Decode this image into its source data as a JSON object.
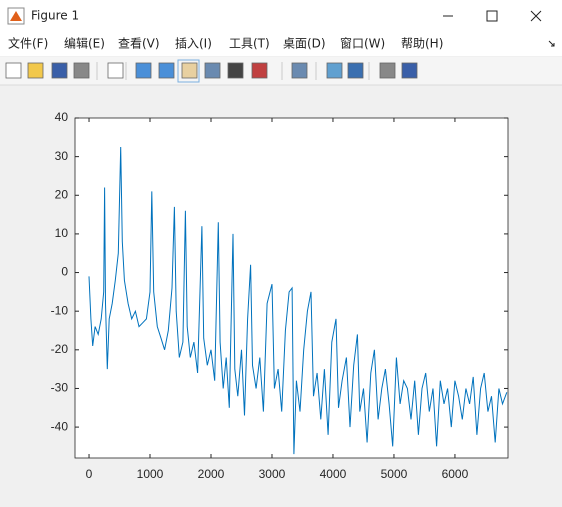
{
  "window": {
    "title": "Figure 1"
  },
  "menu": [
    "文件(F)",
    "编辑(E)",
    "查看(V)",
    "插入(I)",
    "工具(T)",
    "桌面(D)",
    "窗口(W)",
    "帮助(H)"
  ],
  "chart_data": {
    "type": "line",
    "x": [
      0,
      30,
      60,
      100,
      150,
      200,
      240,
      255,
      270,
      300,
      330,
      380,
      430,
      480,
      520,
      545,
      580,
      640,
      700,
      760,
      820,
      880,
      940,
      1000,
      1030,
      1060,
      1120,
      1180,
      1240,
      1300,
      1360,
      1400,
      1430,
      1480,
      1540,
      1580,
      1610,
      1660,
      1720,
      1780,
      1850,
      1880,
      1940,
      2000,
      2060,
      2120,
      2150,
      2200,
      2250,
      2300,
      2360,
      2390,
      2440,
      2500,
      2550,
      2600,
      2650,
      2680,
      2740,
      2800,
      2860,
      2920,
      3000,
      3040,
      3100,
      3160,
      3220,
      3280,
      3330,
      3360,
      3400,
      3460,
      3520,
      3580,
      3640,
      3680,
      3740,
      3800,
      3860,
      3920,
      3980,
      4050,
      4090,
      4150,
      4220,
      4280,
      4340,
      4400,
      4440,
      4500,
      4560,
      4620,
      4680,
      4740,
      4800,
      4860,
      4920,
      4980,
      5040,
      5100,
      5160,
      5220,
      5280,
      5340,
      5400,
      5460,
      5520,
      5580,
      5640,
      5700,
      5760,
      5820,
      5880,
      5940,
      6000,
      6060,
      6120,
      6180,
      6240,
      6300,
      6360,
      6420,
      6480,
      6540,
      6600,
      6660,
      6720,
      6780,
      6850
    ],
    "values": [
      -1,
      -12,
      -19,
      -14,
      -16,
      -12,
      -5,
      22,
      -8,
      -25,
      -12,
      -8,
      -2,
      5,
      32.5,
      8,
      -2,
      -8,
      -12,
      -10,
      -14,
      -13,
      -12,
      -5,
      21,
      -5,
      -14,
      -17,
      -20,
      -15,
      -4,
      17,
      -10,
      -22,
      -18,
      16,
      -14,
      -22,
      -18,
      -26,
      12,
      -17,
      -24,
      -20,
      -28,
      13,
      -18,
      -30,
      -22,
      -35,
      10,
      -25,
      -32,
      -20,
      -37,
      -12,
      2,
      -24,
      -30,
      -22,
      -36,
      -8,
      -3,
      -30,
      -25,
      -36,
      -15,
      -5,
      -4,
      -47,
      -28,
      -36,
      -20,
      -10,
      -5,
      -32,
      -26,
      -38,
      -25,
      -42,
      -18,
      -12,
      -35,
      -28,
      -22,
      -40,
      -24,
      -16,
      -36,
      -30,
      -44,
      -26,
      -20,
      -38,
      -30,
      -25,
      -34,
      -45,
      -22,
      -34,
      -28,
      -30,
      -38,
      -28,
      -42,
      -30,
      -26,
      -36,
      -30,
      -45,
      -28,
      -34,
      -30,
      -40,
      -28,
      -32,
      -38,
      -30,
      -34,
      -27,
      -42,
      -30,
      -26,
      -36,
      -32,
      -44,
      -30,
      -34,
      -31
    ],
    "color": "#0072bd",
    "xlim": [
      -230,
      6870
    ],
    "ylim": [
      -48,
      40
    ],
    "xticks": [
      0,
      1000,
      2000,
      3000,
      4000,
      5000,
      6000
    ],
    "yticks": [
      -40,
      -30,
      -20,
      -10,
      0,
      10,
      20,
      30,
      40
    ]
  }
}
